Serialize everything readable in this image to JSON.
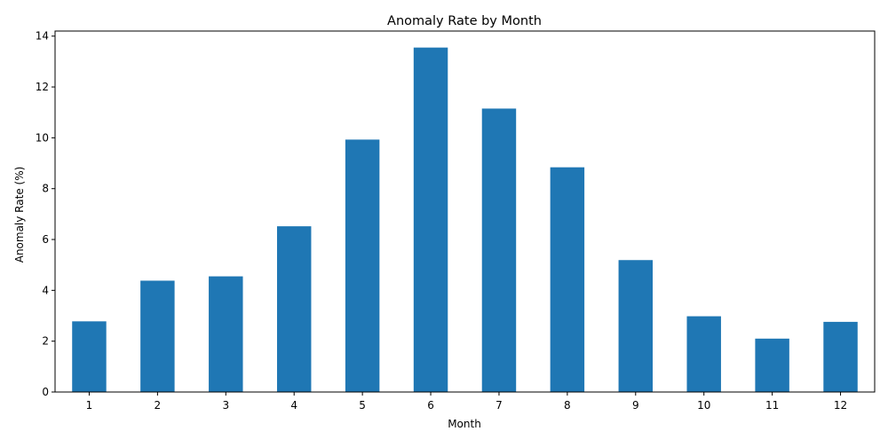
{
  "chart_data": {
    "type": "bar",
    "title": "Anomaly Rate by Month",
    "xlabel": "Month",
    "ylabel": "Anomaly Rate (%)",
    "categories": [
      "1",
      "2",
      "3",
      "4",
      "5",
      "6",
      "7",
      "8",
      "9",
      "10",
      "11",
      "12"
    ],
    "values": [
      2.78,
      4.38,
      4.55,
      6.52,
      9.93,
      13.55,
      11.15,
      8.84,
      5.19,
      2.98,
      2.1,
      2.76
    ],
    "ylim": [
      0,
      14.2
    ],
    "yticks": [
      "0",
      "2",
      "4",
      "6",
      "8",
      "10",
      "12",
      "14"
    ],
    "ytick_values": [
      0,
      2,
      4,
      6,
      8,
      10,
      12,
      14
    ],
    "bar_color": "#1f77b4",
    "grid": false,
    "legend": "none"
  }
}
